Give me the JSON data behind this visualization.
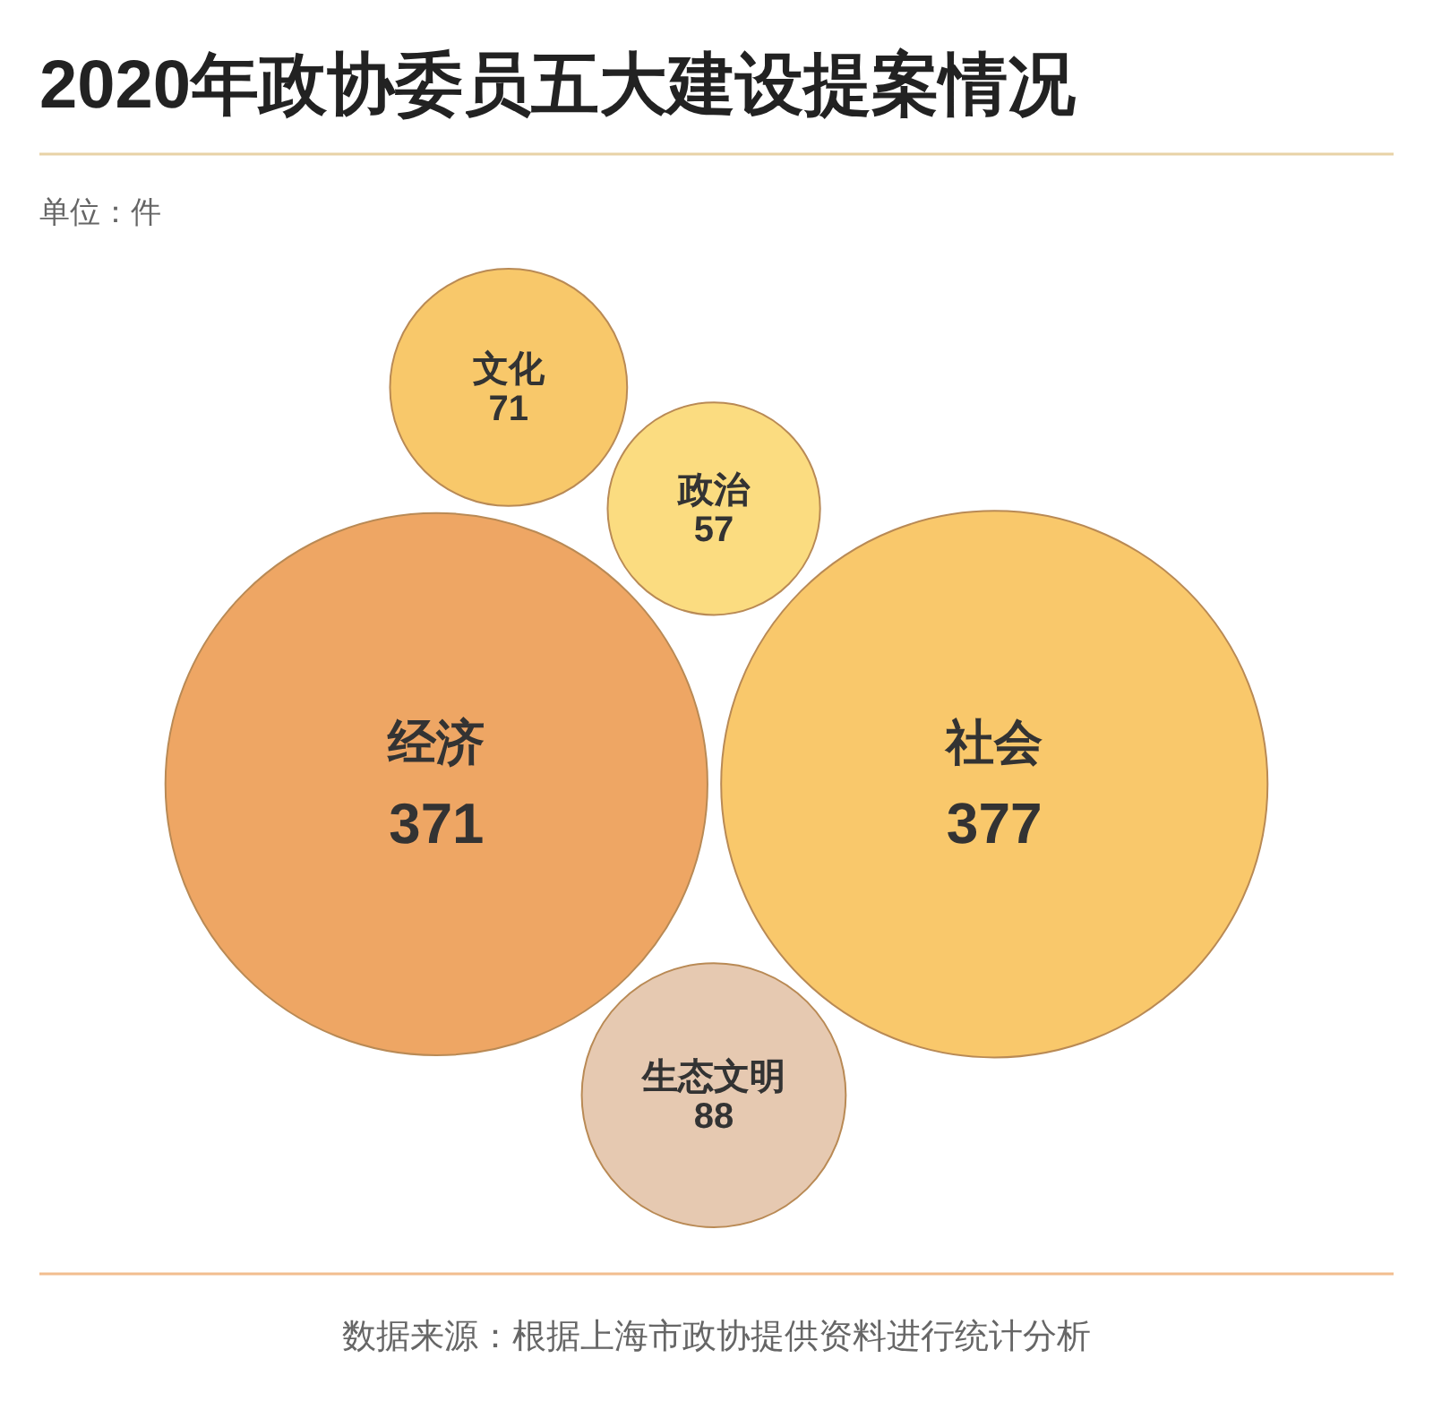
{
  "chart_data": {
    "type": "other",
    "title": "2020年政协委员五大建设提案情况",
    "annotations": [
      "单位：件",
      "数据来源：根据上海市政协提供资料进行统计分析"
    ],
    "categories": [
      "文化",
      "政治",
      "经济",
      "社会",
      "生态文明"
    ],
    "values": [
      71,
      57,
      371,
      377,
      88
    ],
    "colors": [
      "#f8c86a",
      "#fbdc80",
      "#eea664",
      "#f9c86b",
      "#e6c9b1"
    ],
    "data_labels": true
  }
}
